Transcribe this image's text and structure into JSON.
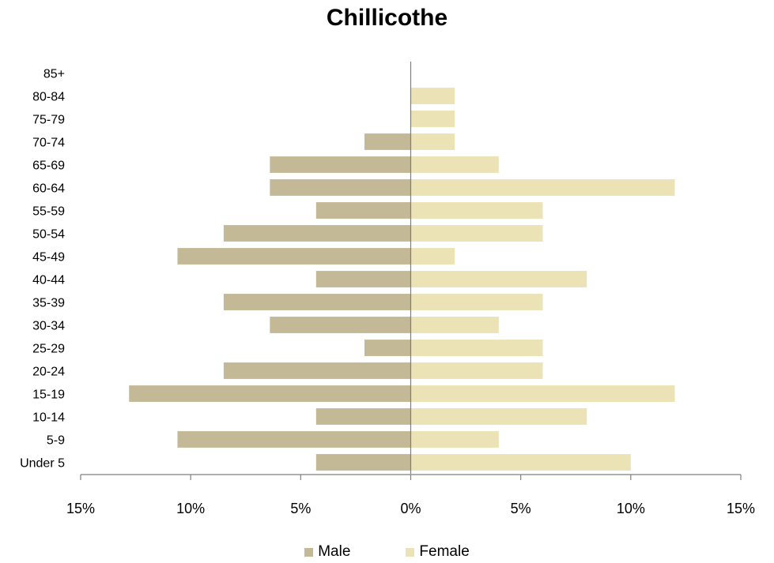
{
  "chart_data": {
    "type": "bar",
    "orientation": "horizontal-population-pyramid",
    "title": "Chillicothe",
    "categories": [
      "Under 5",
      "5-9",
      "10-14",
      "15-19",
      "20-24",
      "25-29",
      "30-34",
      "35-39",
      "40-44",
      "45-49",
      "50-54",
      "55-59",
      "60-64",
      "65-69",
      "70-74",
      "75-79",
      "80-84",
      "85+"
    ],
    "series": [
      {
        "name": "Male",
        "color": "#C4B996",
        "side": "left",
        "values": [
          4.3,
          10.6,
          4.3,
          12.8,
          8.5,
          2.1,
          6.4,
          8.5,
          4.3,
          10.6,
          8.5,
          4.3,
          6.4,
          6.4,
          2.1,
          0,
          0,
          0
        ]
      },
      {
        "name": "Female",
        "color": "#EBE2B6",
        "side": "right",
        "values": [
          10,
          4,
          8,
          12,
          6,
          6,
          4,
          6,
          8,
          2,
          6,
          6,
          12,
          4,
          2,
          2,
          2,
          0
        ]
      }
    ],
    "xlim": [
      -15,
      15
    ],
    "x_ticks": [
      -15,
      -10,
      -5,
      0,
      5,
      10,
      15
    ],
    "x_tick_labels": [
      "15%",
      "10%",
      "5%",
      "0%",
      "5%",
      "10%",
      "15%"
    ],
    "xlabel": "",
    "ylabel": "",
    "grid": false,
    "legend_position": "bottom"
  }
}
